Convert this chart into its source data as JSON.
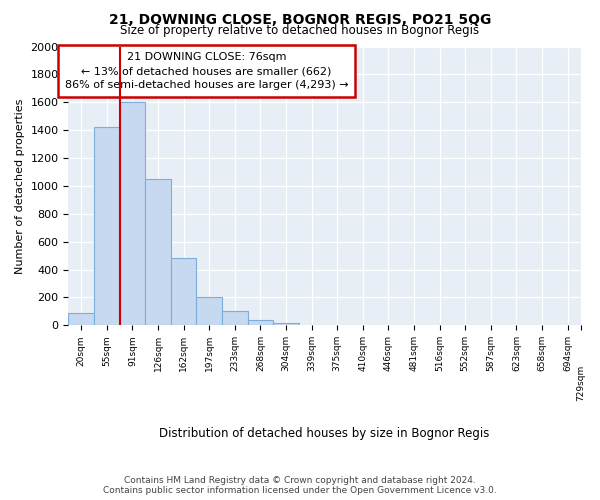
{
  "title": "21, DOWNING CLOSE, BOGNOR REGIS, PO21 5QG",
  "subtitle": "Size of property relative to detached houses in Bognor Regis",
  "xlabel": "Distribution of detached houses by size in Bognor Regis",
  "ylabel": "Number of detached properties",
  "bar_values": [
    85,
    1420,
    1600,
    1050,
    480,
    200,
    105,
    40,
    20,
    0,
    0,
    0,
    0,
    0,
    0,
    0,
    0,
    0,
    0,
    0
  ],
  "bin_labels": [
    "20sqm",
    "55sqm",
    "91sqm",
    "126sqm",
    "162sqm",
    "197sqm",
    "233sqm",
    "268sqm",
    "304sqm",
    "339sqm",
    "375sqm",
    "410sqm",
    "446sqm",
    "481sqm",
    "516sqm",
    "552sqm",
    "587sqm",
    "623sqm",
    "658sqm",
    "694sqm",
    "729sqm"
  ],
  "bar_color": "#c6d9f0",
  "bar_edge_color": "#7dadd9",
  "vline_color": "#cc0000",
  "annotation_line1": "21 DOWNING CLOSE: 76sqm",
  "annotation_line2": "← 13% of detached houses are smaller (662)",
  "annotation_line3": "86% of semi-detached houses are larger (4,293) →",
  "annotation_box_color": "#cc0000",
  "ylim": [
    0,
    2000
  ],
  "yticks": [
    0,
    200,
    400,
    600,
    800,
    1000,
    1200,
    1400,
    1600,
    1800,
    2000
  ],
  "grid_color": "#d0d8e8",
  "background_color": "#e8eef5",
  "footer_text": "Contains HM Land Registry data © Crown copyright and database right 2024.\nContains public sector information licensed under the Open Government Licence v3.0.",
  "title_fontsize": 10,
  "subtitle_fontsize": 8.5,
  "annotation_fontsize": 8,
  "footer_fontsize": 6.5,
  "ylabel_fontsize": 8,
  "xlabel_fontsize": 8.5
}
